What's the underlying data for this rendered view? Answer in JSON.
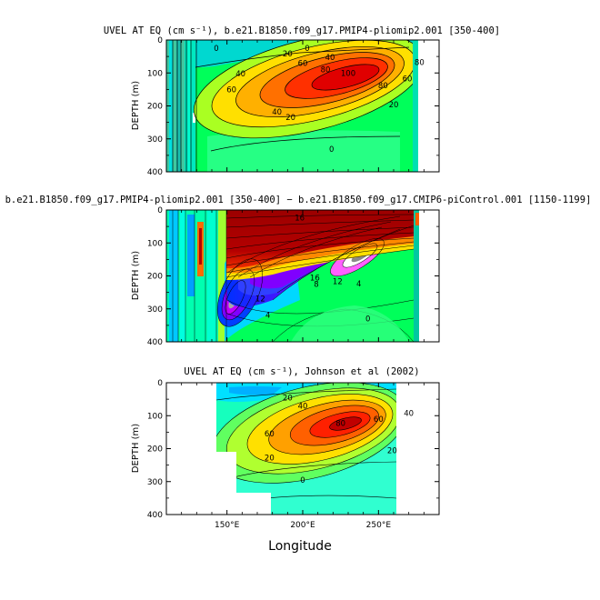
{
  "chart_data": [
    {
      "type": "contour",
      "title": "UVEL AT EQ (cm s⁻¹), b.e21.B1850.f09_g17.PMIP4-pliomip2.001 [350-400]",
      "ylabel": "DEPTH (m)",
      "xlim": [
        110,
        290
      ],
      "ylim": [
        400,
        0
      ],
      "yticks": [
        "0",
        "100",
        "200",
        "300",
        "400"
      ],
      "contour_labels": [
        {
          "text": "0",
          "x": 143,
          "y": 25
        },
        {
          "text": "0",
          "x": 203,
          "y": 25
        },
        {
          "text": "20",
          "x": 190,
          "y": 42
        },
        {
          "text": "40",
          "x": 218,
          "y": 52
        },
        {
          "text": "60",
          "x": 200,
          "y": 70
        },
        {
          "text": "80",
          "x": 215,
          "y": 90
        },
        {
          "text": "100",
          "x": 230,
          "y": 100
        },
        {
          "text": "40",
          "x": 159,
          "y": 102
        },
        {
          "text": "60",
          "x": 153,
          "y": 150
        },
        {
          "text": "80",
          "x": 253,
          "y": 138
        },
        {
          "text": "60",
          "x": 269,
          "y": 117
        },
        {
          "text": "80",
          "x": 277,
          "y": 68
        },
        {
          "text": "40",
          "x": 183,
          "y": 218
        },
        {
          "text": "20",
          "x": 192,
          "y": 235
        },
        {
          "text": "20",
          "x": 260,
          "y": 196
        },
        {
          "text": "0",
          "x": 219,
          "y": 331
        }
      ]
    },
    {
      "type": "contour",
      "title": "b.e21.B1850.f09_g17.PMIP4-pliomip2.001 [350-400] − b.e21.B1850.f09_g17.CMIP6-piControl.001 [1150-1199]",
      "ylabel": "DEPTH (m)",
      "xlim": [
        110,
        290
      ],
      "ylim": [
        400,
        0
      ],
      "yticks": [
        "0",
        "100",
        "200",
        "300",
        "400"
      ],
      "contour_labels": [
        {
          "text": "16",
          "x": 198,
          "y": 24
        },
        {
          "text": "16",
          "x": 208,
          "y": 205
        },
        {
          "text": "12",
          "x": 223,
          "y": 216
        },
        {
          "text": "8",
          "x": 209,
          "y": 225
        },
        {
          "text": "4",
          "x": 237,
          "y": 224
        },
        {
          "text": "12",
          "x": 172,
          "y": 269
        },
        {
          "text": "4",
          "x": 177,
          "y": 318
        },
        {
          "text": "0",
          "x": 243,
          "y": 330
        }
      ]
    },
    {
      "type": "contour",
      "title": "UVEL AT EQ (cm s⁻¹), Johnson et al (2002)",
      "ylabel": "DEPTH (m)",
      "xlabel": "Longitude",
      "xlim": [
        110,
        290
      ],
      "ylim": [
        400,
        0
      ],
      "data_extent_lon": [
        143,
        265
      ],
      "xticks": [
        "150°E",
        "200°E",
        "250°E"
      ],
      "yticks": [
        "0",
        "100",
        "200",
        "300",
        "400"
      ],
      "contour_labels": [
        {
          "text": "20",
          "x": 190,
          "y": 45
        },
        {
          "text": "40",
          "x": 200,
          "y": 70
        },
        {
          "text": "60",
          "x": 178,
          "y": 155
        },
        {
          "text": "80",
          "x": 225,
          "y": 123
        },
        {
          "text": "60",
          "x": 250,
          "y": 111
        },
        {
          "text": "40",
          "x": 270,
          "y": 93
        },
        {
          "text": "20",
          "x": 259,
          "y": 206
        },
        {
          "text": "20",
          "x": 178,
          "y": 227
        },
        {
          "text": "0",
          "x": 200,
          "y": 295
        }
      ]
    }
  ]
}
